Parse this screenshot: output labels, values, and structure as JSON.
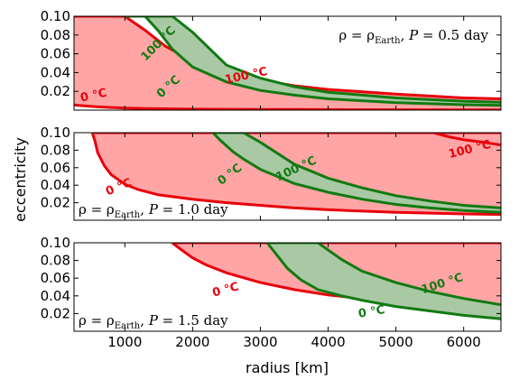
{
  "chart_data": {
    "type": "area",
    "xlabel": "radius [km]",
    "ylabel": "eccentricity",
    "xlim": [
      250,
      6550
    ],
    "ylim": [
      0,
      0.1
    ],
    "x_ticks": [
      "1000",
      "2000",
      "3000",
      "4000",
      "5000",
      "6000"
    ],
    "x_tick_values": [
      1000,
      2000,
      3000,
      4000,
      5000,
      6000
    ],
    "y_ticks": [
      "0.02",
      "0.04",
      "0.06",
      "0.08",
      "0.10"
    ],
    "y_tick_values": [
      0.02,
      0.04,
      0.06,
      0.08,
      0.1
    ],
    "colors": {
      "red_line": "#e8000b",
      "red_fill": "#ffa5a5",
      "green_line": "#127a12",
      "green_fill": "#a9c9a4"
    },
    "panels": [
      {
        "note": "ρ = ρEarth, P = 0.5 day",
        "note_position": "top-right",
        "red_band": {
          "x": [
            250,
            300,
            400,
            600,
            800,
            1000,
            1300,
            1600,
            2000,
            2500,
            3000,
            3500,
            4000,
            5000,
            6000,
            6550
          ],
          "lower": [
            0.0055,
            0.0052,
            0.0045,
            0.0035,
            0.0028,
            0.0022,
            0.0017,
            0.0014,
            0.0011,
            0.0009,
            0.0008,
            0.0007,
            0.0006,
            0.0004,
            0.0003,
            0.0003
          ],
          "upper": [
            0.1,
            0.1,
            0.1,
            0.1,
            0.1,
            0.1,
            0.085,
            0.068,
            0.052,
            0.04,
            0.032,
            0.026,
            0.022,
            0.017,
            0.013,
            0.012
          ]
        },
        "green_band": {
          "x": [
            1000,
            1300,
            1500,
            1700,
            2000,
            2500,
            3000,
            3500,
            4000,
            5000,
            6000,
            6550
          ],
          "lower": [
            0.1,
            0.1,
            0.084,
            0.065,
            0.046,
            0.03,
            0.021,
            0.016,
            0.012,
            0.008,
            0.0058,
            0.005
          ],
          "upper": [
            0.1,
            0.1,
            0.1,
            0.1,
            0.083,
            0.048,
            0.034,
            0.025,
            0.019,
            0.013,
            0.0095,
            0.0085
          ]
        },
        "labels": [
          {
            "text": "0 °C",
            "x": 550,
            "y": 0.012,
            "color": "red",
            "rotation": -12
          },
          {
            "text": "100 °C",
            "x": 2800,
            "y": 0.033,
            "color": "red",
            "rotation": -12
          },
          {
            "text": "0 °C",
            "x": 1680,
            "y": 0.022,
            "color": "green",
            "rotation": -42
          },
          {
            "text": "100 °C",
            "x": 1530,
            "y": 0.068,
            "color": "green",
            "rotation": -45
          }
        ]
      },
      {
        "note": "ρ = ρEarth, P = 1.0 day",
        "note_position": "bottom-left",
        "red_band": {
          "x": [
            520,
            560,
            600,
            700,
            800,
            1000,
            1200,
            1500,
            2000,
            2500,
            3000,
            3500,
            4000,
            5000,
            6000,
            6550
          ],
          "lower": [
            0.1,
            0.09,
            0.077,
            0.062,
            0.052,
            0.041,
            0.035,
            0.029,
            0.024,
            0.02,
            0.017,
            0.014,
            0.012,
            0.009,
            0.0072,
            0.0066
          ],
          "upper": [
            0.1,
            0.1,
            0.1,
            0.1,
            0.1,
            0.1,
            0.1,
            0.1,
            0.1,
            0.1,
            0.1,
            0.1,
            0.1,
            0.1,
            0.1,
            0.1
          ]
        },
        "red_upper_line": {
          "x": [
            5550,
            5800,
            6000,
            6300,
            6550
          ],
          "y": [
            0.1,
            0.095,
            0.092,
            0.089,
            0.086
          ]
        },
        "green_band": {
          "x": [
            2300,
            2400,
            2600,
            2750,
            3000,
            3500,
            4000,
            4500,
            5000,
            5500,
            6000,
            6550
          ],
          "lower": [
            0.1,
            0.092,
            0.078,
            0.07,
            0.058,
            0.042,
            0.032,
            0.024,
            0.018,
            0.014,
            0.011,
            0.009
          ],
          "upper": [
            0.1,
            0.1,
            0.1,
            0.1,
            0.089,
            0.064,
            0.048,
            0.037,
            0.028,
            0.022,
            0.017,
            0.014
          ]
        },
        "labels": [
          {
            "text": "0 °C",
            "x": 930,
            "y": 0.034,
            "color": "red",
            "rotation": -22
          },
          {
            "text": "100 °C",
            "x": 6100,
            "y": 0.077,
            "color": "red",
            "rotation": -14
          },
          {
            "text": "0 °C",
            "x": 2580,
            "y": 0.049,
            "color": "green",
            "rotation": -37
          },
          {
            "text": "100 °C",
            "x": 3550,
            "y": 0.055,
            "color": "green",
            "rotation": -25
          }
        ]
      },
      {
        "note": "ρ = ρEarth, P = 1.5 day",
        "note_position": "bottom-left",
        "red_band": {
          "x": [
            1700,
            1800,
            2000,
            2200,
            2500,
            3000,
            3500,
            4000,
            4500,
            5000,
            6000,
            6550
          ],
          "lower": [
            0.1,
            0.094,
            0.083,
            0.075,
            0.066,
            0.055,
            0.047,
            0.041,
            0.037,
            0.033,
            0.027,
            0.025
          ],
          "upper": [
            0.1,
            0.1,
            0.1,
            0.1,
            0.1,
            0.1,
            0.1,
            0.1,
            0.1,
            0.1,
            0.1,
            0.1
          ]
        },
        "green_band": {
          "x": [
            3100,
            3400,
            3600,
            3850,
            4200,
            4500,
            5000,
            5500,
            6000,
            6550
          ],
          "lower": [
            0.1,
            0.071,
            0.058,
            0.047,
            0.04,
            0.035,
            0.028,
            0.023,
            0.018,
            0.014
          ],
          "upper": [
            0.1,
            0.1,
            0.1,
            0.1,
            0.081,
            0.068,
            0.055,
            0.045,
            0.037,
            0.03
          ]
        },
        "labels": [
          {
            "text": "0 °C",
            "x": 2500,
            "y": 0.043,
            "color": "red",
            "rotation": -15
          },
          {
            "text": "0 °C",
            "x": 4650,
            "y": 0.018,
            "color": "green",
            "rotation": -10
          },
          {
            "text": "100 °C",
            "x": 5700,
            "y": 0.05,
            "color": "green",
            "rotation": -18
          }
        ]
      }
    ]
  }
}
